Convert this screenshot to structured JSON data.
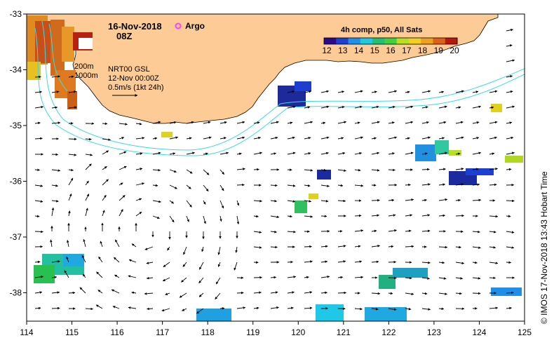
{
  "title": {
    "date": "16-Nov-2018",
    "time": "08Z",
    "legend_symbol_label": "Argo"
  },
  "colorbar": {
    "title": "4h comp, p50, All Sats",
    "ticks": [
      "12",
      "13",
      "14",
      "15",
      "16",
      "17",
      "18",
      "19",
      "20"
    ],
    "colors": [
      "#2a0a8a",
      "#1c3fd0",
      "#1e90e8",
      "#20c8e0",
      "#22c070",
      "#40d040",
      "#b8e020",
      "#f0d020",
      "#f0a020",
      "#e06018",
      "#b81810"
    ]
  },
  "annotations": {
    "isobath_200": "200m",
    "isobath_1000": "1000m",
    "product": "NRT00 GSL",
    "product_date": "12-Nov 00:00Z",
    "scale": "0.5m/s (1kt 24h)"
  },
  "axes": {
    "x_ticks": [
      "114",
      "115",
      "116",
      "117",
      "118",
      "119",
      "120",
      "121",
      "122",
      "123",
      "124",
      "125"
    ],
    "y_ticks": [
      "-33",
      "-34",
      "-35",
      "-36",
      "-37",
      "-38"
    ]
  },
  "credit": "© IMOS 17-Nov-2018 13:43 Hobart Time",
  "colors": {
    "land": "#fccb96",
    "isobath": "#40d8e0",
    "argo": "#ff40ff"
  }
}
